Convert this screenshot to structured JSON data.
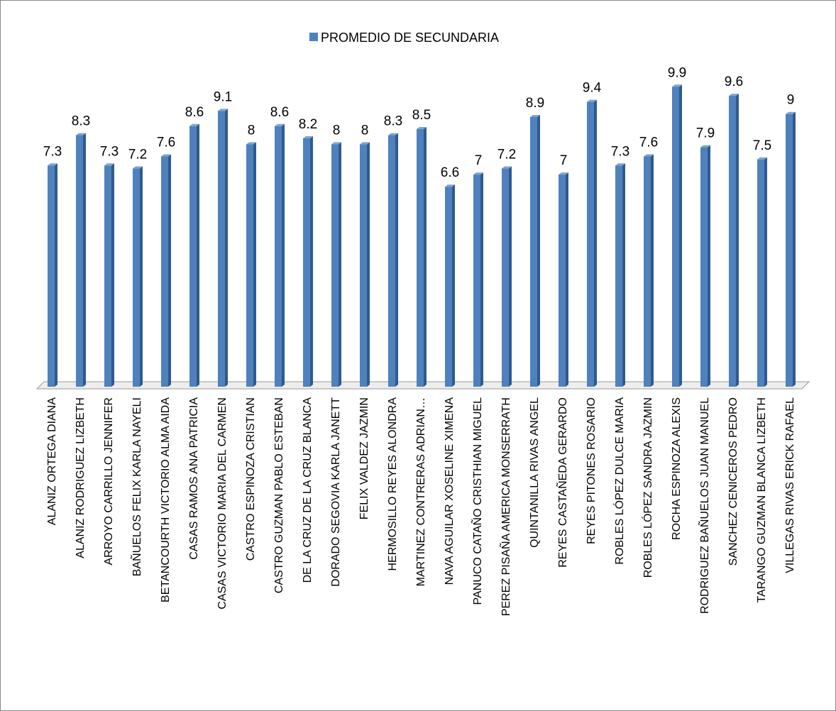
{
  "chart_data": {
    "type": "bar",
    "categories": [
      "ALANIZ ORTEGA DIANA",
      "ALANIZ RODRIGUEZ LIZBETH",
      "ARROYO CARRILLO JENNIFER",
      "BAÑUELOS FELIX KARLA NAYELI",
      "BETANCOURTH VICTORIO ALMA AIDA",
      "CASAS RAMOS ANA PATRICIA",
      "CASAS VICTORIO MARIA DEL CARMEN",
      "CASTRO ESPINOZA CRISTIAN",
      "CASTRO GUZMAN PABLO ESTEBAN",
      "DE LA CRUZ DE LA CRUZ BLANCA",
      "DORADO SEGOVIA KARLA JANETT",
      "FELIX VALDEZ JAZMIN",
      "HERMOSILLO REYES ALONDRA",
      "MARTINEZ CONTRERAS ADRIAN…",
      "NAVA AGUILAR XOSELINE XIMENA",
      "PANUCO CATAÑO CRISTHIAN MIGUEL",
      "PEREZ PISAÑA AMERICA MONSERRATH",
      "QUINTANILLA RIVAS ANGEL",
      "REYES CASTAÑEDA GERARDO",
      "REYES PITONES ROSARIO",
      "ROBLES LÓPEZ DULCE MARIA",
      "ROBLES LÓPEZ SANDRA JAZMIN",
      "ROCHA ESPINOZA ALEXIS",
      "RODRIGUEZ BAÑUELOS JUAN MANUEL",
      "SANCHEZ CENICEROS PEDRO",
      "TARANGO GUZMAN BLANCA LIZBETH",
      "VILLEGAS RIVAS ERICK RAFAEL"
    ],
    "series": [
      {
        "name": "PROMEDIO DE SECUNDARIA",
        "color": "#4f81bd",
        "values": [
          7.3,
          8.3,
          7.3,
          7.2,
          7.6,
          8.6,
          9.1,
          8,
          8.6,
          8.2,
          8,
          8,
          8.3,
          8.5,
          6.6,
          7,
          7.2,
          8.9,
          7,
          9.4,
          7.3,
          7.6,
          9.9,
          7.9,
          9.6,
          7.5,
          9
        ]
      }
    ],
    "ylim": [
      0,
      10
    ],
    "legend": "top"
  }
}
